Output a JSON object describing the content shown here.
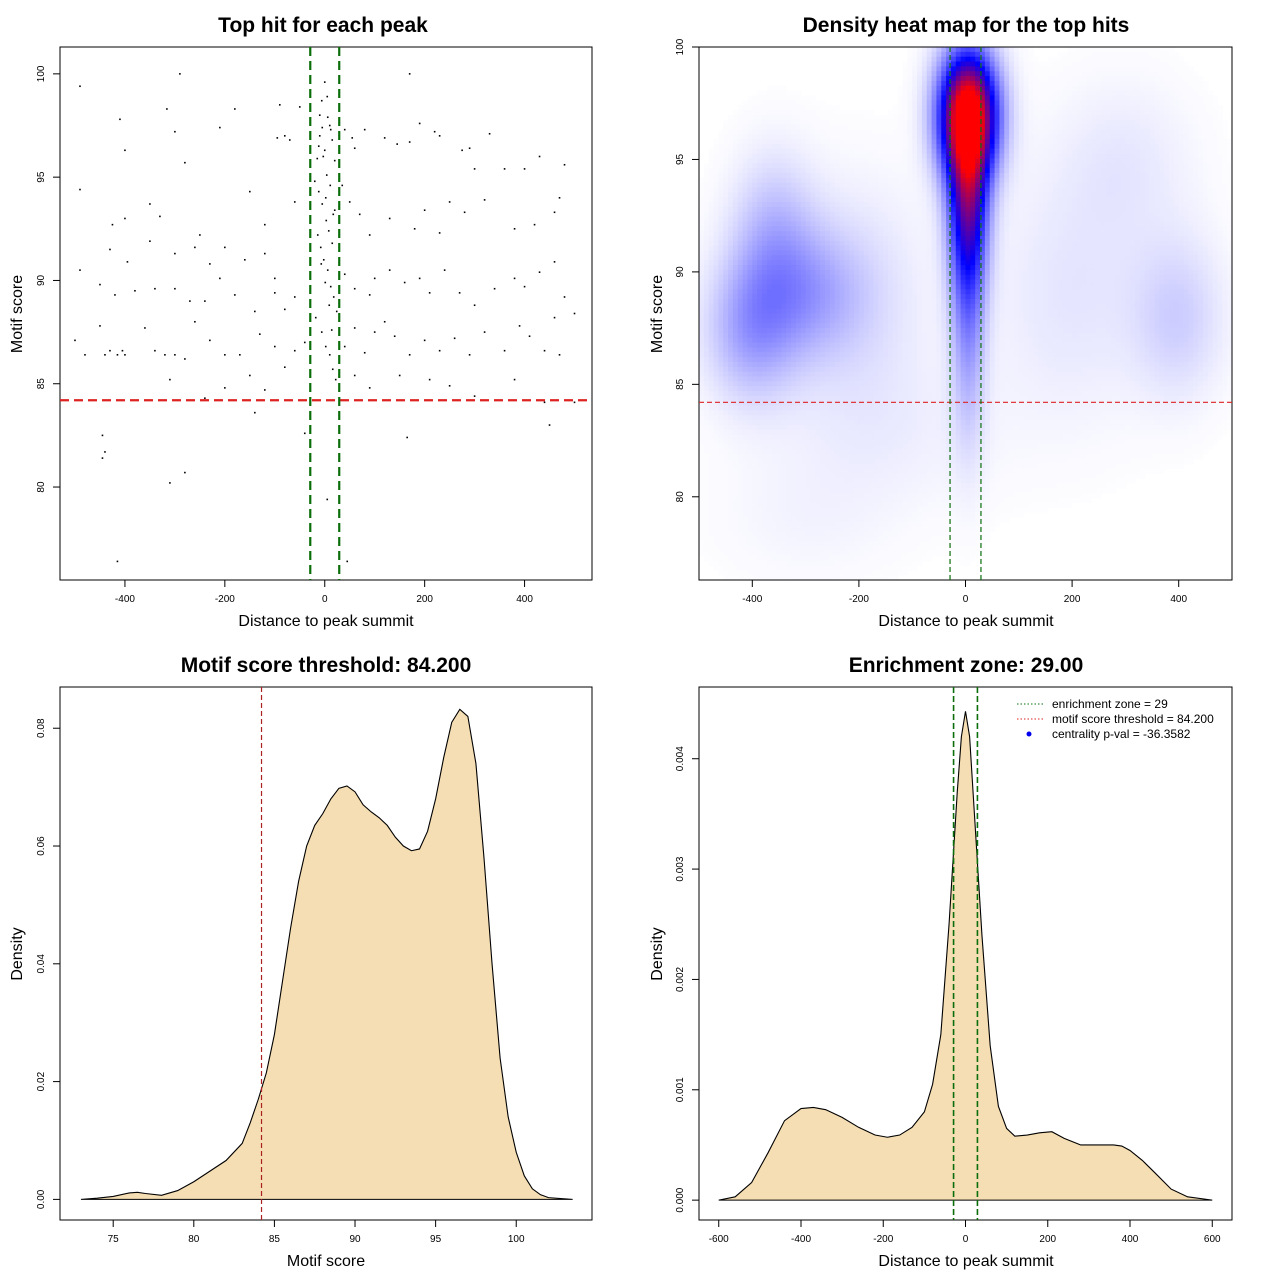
{
  "chart_data": [
    {
      "type": "scatter",
      "title": "Top hit for each peak",
      "xlabel": "Distance to peak summit",
      "ylabel": "Motif score",
      "xlim": [
        -530,
        535
      ],
      "ylim": [
        75.5,
        101.3
      ],
      "xticks": [
        "-400",
        "-200",
        "0",
        "200",
        "400"
      ],
      "yticks": [
        "80",
        "85",
        "90",
        "95",
        "100"
      ],
      "xtick_values": [
        -400,
        -200,
        0,
        200,
        400
      ],
      "ytick_values": [
        80,
        85,
        90,
        95,
        100
      ],
      "hlines": [
        {
          "y": 84.2,
          "color": "#dd2222",
          "style": "dashed",
          "meaning": "motif score threshold"
        }
      ],
      "vlines": [
        {
          "x": -29,
          "color": "#0b6e0b",
          "style": "dashed"
        },
        {
          "x": 29,
          "color": "#0b6e0b",
          "style": "dashed"
        }
      ],
      "points": [
        [
          -490,
          99.4
        ],
        [
          -290,
          100.0
        ],
        [
          -410,
          97.8
        ],
        [
          -400,
          96.3
        ],
        [
          -316,
          98.3
        ],
        [
          -300,
          97.2
        ],
        [
          -280,
          95.7
        ],
        [
          -210,
          97.4
        ],
        [
          -180,
          98.3
        ],
        [
          -90,
          98.5
        ],
        [
          -80,
          97.0
        ],
        [
          -95,
          96.9
        ],
        [
          -70,
          96.8
        ],
        [
          -50,
          98.4
        ],
        [
          -490,
          94.4
        ],
        [
          -400,
          93.0
        ],
        [
          -425,
          92.7
        ],
        [
          -350,
          93.7
        ],
        [
          -330,
          93.1
        ],
        [
          -250,
          92.2
        ],
        [
          -150,
          94.3
        ],
        [
          -120,
          92.7
        ],
        [
          -60,
          93.8
        ],
        [
          -430,
          91.5
        ],
        [
          -395,
          90.9
        ],
        [
          -350,
          91.9
        ],
        [
          -300,
          91.3
        ],
        [
          -260,
          91.6
        ],
        [
          -230,
          90.8
        ],
        [
          -200,
          91.6
        ],
        [
          -160,
          91.0
        ],
        [
          -120,
          91.3
        ],
        [
          -100,
          90.1
        ],
        [
          -490,
          90.5
        ],
        [
          -450,
          89.8
        ],
        [
          -420,
          89.3
        ],
        [
          -380,
          89.5
        ],
        [
          -340,
          89.6
        ],
        [
          -300,
          89.6
        ],
        [
          -270,
          89.0
        ],
        [
          -240,
          89.0
        ],
        [
          -210,
          90.1
        ],
        [
          -180,
          89.3
        ],
        [
          -140,
          88.5
        ],
        [
          -100,
          89.4
        ],
        [
          -80,
          88.6
        ],
        [
          -60,
          89.2
        ],
        [
          -500,
          87.1
        ],
        [
          -480,
          86.4
        ],
        [
          -450,
          87.8
        ],
        [
          -440,
          86.4
        ],
        [
          -430,
          86.6
        ],
        [
          -415,
          86.4
        ],
        [
          -405,
          86.6
        ],
        [
          -400,
          86.4
        ],
        [
          -360,
          87.7
        ],
        [
          -340,
          86.6
        ],
        [
          -320,
          86.4
        ],
        [
          -300,
          86.4
        ],
        [
          -280,
          86.2
        ],
        [
          -260,
          88.0
        ],
        [
          -230,
          87.1
        ],
        [
          -200,
          86.4
        ],
        [
          -170,
          86.4
        ],
        [
          -130,
          87.4
        ],
        [
          -100,
          86.8
        ],
        [
          -60,
          86.6
        ],
        [
          -40,
          87.0
        ],
        [
          -310,
          85.2
        ],
        [
          -240,
          84.3
        ],
        [
          -200,
          84.8
        ],
        [
          -150,
          85.4
        ],
        [
          -120,
          84.7
        ],
        [
          -80,
          85.8
        ],
        [
          -140,
          83.6
        ],
        [
          -445,
          82.5
        ],
        [
          -440,
          81.7
        ],
        [
          -445,
          81.4
        ],
        [
          -310,
          80.2
        ],
        [
          -280,
          80.7
        ],
        [
          -415,
          76.4
        ],
        [
          -40,
          82.6
        ],
        [
          -10,
          98.0
        ],
        [
          -5,
          97.4
        ],
        [
          0,
          96.3
        ],
        [
          5,
          98.9
        ],
        [
          10,
          97.5
        ],
        [
          15,
          96.8
        ],
        [
          20,
          95.8
        ],
        [
          -15,
          95.9
        ],
        [
          -20,
          94.8
        ],
        [
          -12,
          94.3
        ],
        [
          -5,
          93.7
        ],
        [
          3,
          92.9
        ],
        [
          8,
          92.4
        ],
        [
          15,
          91.8
        ],
        [
          20,
          93.4
        ],
        [
          -8,
          91.6
        ],
        [
          -2,
          91.0
        ],
        [
          6,
          90.5
        ],
        [
          12,
          89.7
        ],
        [
          18,
          89.2
        ],
        [
          24,
          88.5
        ],
        [
          -18,
          88.2
        ],
        [
          -6,
          87.5
        ],
        [
          2,
          86.8
        ],
        [
          10,
          86.4
        ],
        [
          16,
          85.7
        ],
        [
          22,
          85.2
        ],
        [
          -10,
          97.0
        ],
        [
          -3,
          96.0
        ],
        [
          4,
          95.1
        ],
        [
          11,
          94.6
        ],
        [
          17,
          93.2
        ],
        [
          -14,
          92.2
        ],
        [
          -7,
          90.8
        ],
        [
          1,
          89.9
        ],
        [
          9,
          88.8
        ],
        [
          14,
          87.6
        ],
        [
          0,
          99.6
        ],
        [
          -6,
          98.7
        ],
        [
          6,
          97.9
        ],
        [
          12,
          97.3
        ],
        [
          -12,
          96.5
        ],
        [
          2,
          94.0
        ],
        [
          5,
          79.4
        ],
        [
          40,
          97.3
        ],
        [
          55,
          96.9
        ],
        [
          60,
          96.4
        ],
        [
          80,
          97.3
        ],
        [
          120,
          96.9
        ],
        [
          145,
          96.6
        ],
        [
          170,
          96.7
        ],
        [
          220,
          97.2
        ],
        [
          230,
          97.0
        ],
        [
          275,
          96.3
        ],
        [
          190,
          97.6
        ],
        [
          170,
          100.0
        ],
        [
          35,
          94.6
        ],
        [
          50,
          93.8
        ],
        [
          70,
          93.2
        ],
        [
          90,
          92.2
        ],
        [
          130,
          93.0
        ],
        [
          180,
          92.5
        ],
        [
          200,
          93.4
        ],
        [
          230,
          92.3
        ],
        [
          250,
          93.8
        ],
        [
          280,
          93.3
        ],
        [
          320,
          93.9
        ],
        [
          380,
          92.5
        ],
        [
          420,
          92.7
        ],
        [
          460,
          93.3
        ],
        [
          470,
          94.0
        ],
        [
          40,
          90.3
        ],
        [
          60,
          89.6
        ],
        [
          90,
          89.3
        ],
        [
          100,
          90.1
        ],
        [
          130,
          90.5
        ],
        [
          160,
          89.9
        ],
        [
          190,
          90.1
        ],
        [
          210,
          89.4
        ],
        [
          240,
          90.5
        ],
        [
          270,
          89.4
        ],
        [
          300,
          88.8
        ],
        [
          340,
          89.6
        ],
        [
          380,
          90.1
        ],
        [
          400,
          89.7
        ],
        [
          430,
          90.4
        ],
        [
          460,
          90.9
        ],
        [
          480,
          89.2
        ],
        [
          40,
          86.8
        ],
        [
          60,
          87.7
        ],
        [
          80,
          86.5
        ],
        [
          100,
          87.5
        ],
        [
          120,
          88.0
        ],
        [
          140,
          87.3
        ],
        [
          170,
          86.4
        ],
        [
          200,
          87.1
        ],
        [
          230,
          86.6
        ],
        [
          260,
          87.2
        ],
        [
          290,
          86.4
        ],
        [
          320,
          87.5
        ],
        [
          360,
          86.6
        ],
        [
          390,
          87.8
        ],
        [
          410,
          87.3
        ],
        [
          440,
          86.6
        ],
        [
          460,
          88.2
        ],
        [
          470,
          86.4
        ],
        [
          500,
          88.4
        ],
        [
          60,
          85.4
        ],
        [
          90,
          84.8
        ],
        [
          150,
          85.4
        ],
        [
          210,
          85.2
        ],
        [
          250,
          84.9
        ],
        [
          300,
          84.4
        ],
        [
          380,
          85.2
        ],
        [
          440,
          84.1
        ],
        [
          450,
          83.0
        ],
        [
          500,
          84.1
        ],
        [
          165,
          82.4
        ],
        [
          45,
          76.4
        ],
        [
          300,
          95.4
        ],
        [
          360,
          95.4
        ],
        [
          400,
          95.4
        ],
        [
          430,
          96.0
        ],
        [
          480,
          95.6
        ],
        [
          330,
          97.1
        ],
        [
          290,
          96.4
        ]
      ]
    },
    {
      "type": "heatmap",
      "title": "Density heat map for the top hits",
      "xlabel": "Distance to peak summit",
      "ylabel": "Motif score",
      "xlim": [
        -500,
        500
      ],
      "ylim": [
        76.3,
        100
      ],
      "xticks": [
        "-400",
        "-200",
        "0",
        "200",
        "400"
      ],
      "yticks": [
        "80",
        "85",
        "90",
        "95",
        "100"
      ],
      "xtick_values": [
        -400,
        -200,
        0,
        200,
        400
      ],
      "ytick_values": [
        80,
        85,
        90,
        95,
        100
      ],
      "colors": [
        "#ffffff",
        "#0000ff",
        "#ff0000"
      ],
      "hotspot": {
        "x": 5,
        "y": 97
      },
      "density_blobs": [
        {
          "x": 5,
          "y": 97,
          "sx": 38,
          "sy": 1.9,
          "w": 1.0
        },
        {
          "x": 5,
          "y": 93.5,
          "sx": 26,
          "sy": 2.8,
          "w": 0.55
        },
        {
          "x": 5,
          "y": 89,
          "sx": 22,
          "sy": 4.0,
          "w": 0.22
        },
        {
          "x": -400,
          "y": 87.5,
          "sx": 60,
          "sy": 2.2,
          "w": 0.18
        },
        {
          "x": -360,
          "y": 91.5,
          "sx": 55,
          "sy": 2.5,
          "w": 0.13
        },
        {
          "x": -290,
          "y": 89,
          "sx": 70,
          "sy": 2.0,
          "w": 0.13
        },
        {
          "x": -200,
          "y": 89,
          "sx": 90,
          "sy": 3.5,
          "w": 0.06
        },
        {
          "x": 200,
          "y": 89,
          "sx": 110,
          "sy": 4.0,
          "w": 0.05
        },
        {
          "x": 400,
          "y": 88,
          "sx": 60,
          "sy": 2.5,
          "w": 0.09
        },
        {
          "x": 300,
          "y": 95,
          "sx": 90,
          "sy": 2.5,
          "w": 0.04
        },
        {
          "x": -150,
          "y": 83,
          "sx": 150,
          "sy": 2.5,
          "w": 0.03
        },
        {
          "x": -300,
          "y": 79,
          "sx": 120,
          "sy": 2.0,
          "w": 0.02
        }
      ],
      "hlines": [
        {
          "y": 84.2,
          "color": "#dd2222",
          "style": "dashed"
        }
      ],
      "vlines": [
        {
          "x": -29,
          "color": "#0b6e0b",
          "style": "dashed"
        },
        {
          "x": 29,
          "color": "#0b6e0b",
          "style": "dashed"
        }
      ]
    },
    {
      "type": "area",
      "title": "Motif score threshold: 84.200",
      "xlabel": "Motif score",
      "ylabel": "Density",
      "xlim": [
        71.7,
        104.7
      ],
      "ylim": [
        -0.0035,
        0.087
      ],
      "xticks": [
        "75",
        "80",
        "85",
        "90",
        "95",
        "100"
      ],
      "yticks": [
        "0.00",
        "0.02",
        "0.04",
        "0.06",
        "0.08"
      ],
      "xtick_values": [
        75,
        80,
        85,
        90,
        95,
        100
      ],
      "ytick_values": [
        0,
        0.02,
        0.04,
        0.06,
        0.08
      ],
      "fill": "#f5deb3",
      "x": [
        73,
        74,
        75,
        76,
        76.5,
        77,
        78,
        79,
        80,
        81,
        82,
        83,
        83.5,
        84,
        84.5,
        85,
        85.5,
        86,
        86.5,
        87,
        87.5,
        88,
        88.5,
        89,
        89.5,
        90,
        90.5,
        91,
        91.5,
        92,
        92.5,
        93,
        93.5,
        94,
        94.5,
        95,
        95.5,
        96,
        96.5,
        97,
        97.5,
        98,
        98.5,
        99,
        99.5,
        100,
        100.5,
        101,
        101.5,
        102,
        103.5
      ],
      "y": [
        0,
        0.0002,
        0.0005,
        0.0011,
        0.0012,
        0.001,
        0.0007,
        0.0015,
        0.003,
        0.0048,
        0.0066,
        0.0095,
        0.013,
        0.017,
        0.0215,
        0.028,
        0.037,
        0.046,
        0.054,
        0.06,
        0.0635,
        0.0655,
        0.068,
        0.0698,
        0.0702,
        0.0692,
        0.067,
        0.0658,
        0.0648,
        0.0635,
        0.0615,
        0.06,
        0.0592,
        0.0595,
        0.0625,
        0.068,
        0.075,
        0.081,
        0.0832,
        0.082,
        0.074,
        0.058,
        0.04,
        0.024,
        0.014,
        0.008,
        0.004,
        0.0018,
        0.0008,
        0.0003,
        0
      ],
      "vlines": [
        {
          "x": 84.2,
          "color": "#aa2222",
          "style": "dashed"
        }
      ]
    },
    {
      "type": "area",
      "title": "Enrichment zone: 29.00",
      "xlabel": "Distance to peak summit",
      "ylabel": "Density",
      "xlim": [
        -648,
        648
      ],
      "ylim": [
        -0.00018,
        0.00465
      ],
      "xticks": [
        "-600",
        "-400",
        "-200",
        "0",
        "200",
        "400",
        "600"
      ],
      "yticks": [
        "0.000",
        "0.001",
        "0.002",
        "0.003",
        "0.004"
      ],
      "xtick_values": [
        -600,
        -400,
        -200,
        0,
        200,
        400,
        600
      ],
      "ytick_values": [
        0,
        0.001,
        0.002,
        0.003,
        0.004
      ],
      "fill": "#f5deb3",
      "x": [
        -600,
        -560,
        -520,
        -480,
        -440,
        -400,
        -370,
        -340,
        -300,
        -260,
        -220,
        -190,
        -160,
        -130,
        -100,
        -80,
        -60,
        -40,
        -20,
        -10,
        0,
        10,
        20,
        40,
        60,
        80,
        100,
        120,
        150,
        180,
        210,
        240,
        280,
        320,
        360,
        380,
        400,
        430,
        460,
        500,
        540,
        600
      ],
      "y": [
        0,
        3e-05,
        0.00016,
        0.00043,
        0.00072,
        0.00083,
        0.00084,
        0.00082,
        0.00075,
        0.00066,
        0.00059,
        0.00057,
        0.00059,
        0.00066,
        0.0008,
        0.00105,
        0.0015,
        0.0025,
        0.0037,
        0.0042,
        0.00443,
        0.0042,
        0.0036,
        0.0024,
        0.0014,
        0.00085,
        0.00065,
        0.00058,
        0.00059,
        0.00061,
        0.00062,
        0.00056,
        0.0005,
        0.0005,
        0.0005,
        0.00049,
        0.00045,
        0.00036,
        0.00025,
        0.0001,
        3e-05,
        0
      ],
      "vlines": [
        {
          "x": -29,
          "color": "#0b6e0b",
          "style": "dashed"
        },
        {
          "x": 29,
          "color": "#0b6e0b",
          "style": "dashed"
        }
      ],
      "legend": {
        "position": "top-right",
        "entries": [
          {
            "label": "enrichment zone = 29",
            "color": "#0b6e0b",
            "kind": "dotted-line"
          },
          {
            "label": "motif score threshold = 84.200",
            "color": "#dd2222",
            "kind": "dotted-line"
          },
          {
            "label": "centrality p-val = -36.3582",
            "color": "#0000ee",
            "kind": "dot"
          }
        ]
      }
    }
  ]
}
